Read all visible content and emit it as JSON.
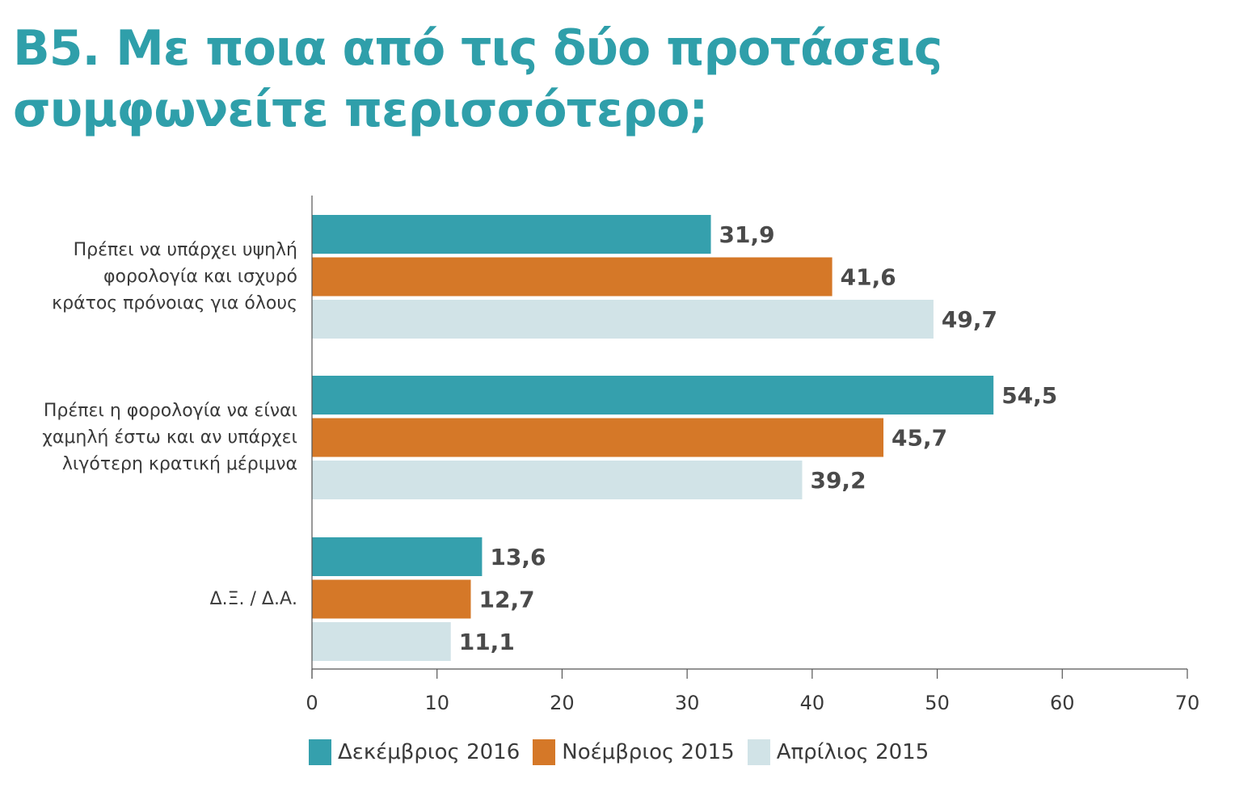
{
  "title_lines": [
    "B5. Με ποια από τις δύο προτάσεις",
    "συμφωνείτε περισσότερο;"
  ],
  "chart_data": {
    "type": "bar",
    "orientation": "horizontal",
    "categories": [
      [
        "Πρέπει να υπάρχει υψηλή",
        "φορολογία και ισχυρό",
        "κράτος πρόνοιας για όλους"
      ],
      [
        "Πρέπει η φορολογία να είναι",
        "χαμηλή έστω και αν υπάρχει",
        "λιγότερη κρατική μέριμνα"
      ],
      [
        "Δ.Ξ. / Δ.Α."
      ]
    ],
    "series": [
      {
        "name": "Δεκέμβριος 2016",
        "color": "#35a0ad",
        "values": [
          31.9,
          54.5,
          13.6
        ],
        "labels": [
          "31,9",
          "54,5",
          "13,6"
        ]
      },
      {
        "name": "Νοέμβριος 2015",
        "color": "#d57828",
        "values": [
          41.6,
          45.7,
          12.7
        ],
        "labels": [
          "41,6",
          "45,7",
          "12,7"
        ]
      },
      {
        "name": "Απρίλιος 2015",
        "color": "#d1e3e7",
        "values": [
          49.7,
          39.2,
          11.1
        ],
        "labels": [
          "49,7",
          "39,2",
          "11,1"
        ]
      }
    ],
    "xlim": [
      0,
      70
    ],
    "xticks": [
      "0",
      "10",
      "20",
      "30",
      "40",
      "50",
      "60",
      "70"
    ],
    "grid": false,
    "legend_position": "bottom-left"
  }
}
